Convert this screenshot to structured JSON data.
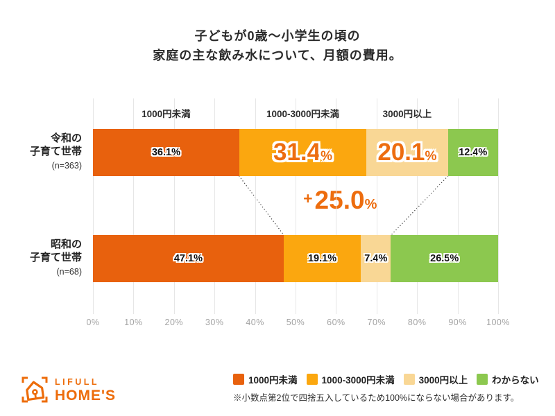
{
  "title": {
    "line1": "子どもが0歳〜小学生の頃の",
    "line2": "家庭の主な飲み水について、月額の費用。"
  },
  "chart_data": {
    "type": "bar",
    "stacked": true,
    "orientation": "horizontal",
    "categories": [
      "1000円未満",
      "1000-3000円未満",
      "3000円以上",
      "わからない"
    ],
    "colors": [
      "#e8610d",
      "#fba70f",
      "#f9d795",
      "#8cc84f"
    ],
    "column_headers": [
      "1000円未満",
      "1000-3000円未満",
      "3000円以上"
    ],
    "rows": [
      {
        "label_lines": [
          "令和の",
          "子育て世帯"
        ],
        "n_label": "(n=363)",
        "values": [
          36.1,
          31.4,
          20.1,
          12.4
        ],
        "labels": [
          "36.1",
          "31.4",
          "20.1",
          "12.4"
        ],
        "emphasized": [
          false,
          true,
          true,
          false
        ]
      },
      {
        "label_lines": [
          "昭和の",
          "子育て世帯"
        ],
        "n_label": "(n=68)",
        "values": [
          47.1,
          19.1,
          7.4,
          26.5
        ],
        "labels": [
          "47.1",
          "19.1",
          "7.4",
          "26.5"
        ],
        "emphasized": [
          false,
          false,
          false,
          false
        ]
      }
    ],
    "percent_sign": "%",
    "annotation": {
      "plus": "+",
      "value": "25.0",
      "percent": "%"
    },
    "connector_after_segments": [
      1,
      3
    ],
    "x_ticks": [
      "0%",
      "10%",
      "20%",
      "30%",
      "40%",
      "50%",
      "60%",
      "70%",
      "80%",
      "90%",
      "100%"
    ],
    "xlim": [
      0,
      100
    ],
    "grid": true,
    "emphasis_color": "#ed6d0f"
  },
  "legend": {
    "items": [
      {
        "label": "1000円未満",
        "color": "#e8610d"
      },
      {
        "label": "1000-3000円未満",
        "color": "#fba70f"
      },
      {
        "label": "3000円以上",
        "color": "#f9d795"
      },
      {
        "label": "わからない",
        "color": "#8cc84f"
      }
    ]
  },
  "footnote": "※小数点第2位で四捨五入しているため100%にならない場合があります。",
  "logo": {
    "line1": "LIFULL",
    "line2": "HOME'S",
    "color": "#ed6c0a"
  }
}
